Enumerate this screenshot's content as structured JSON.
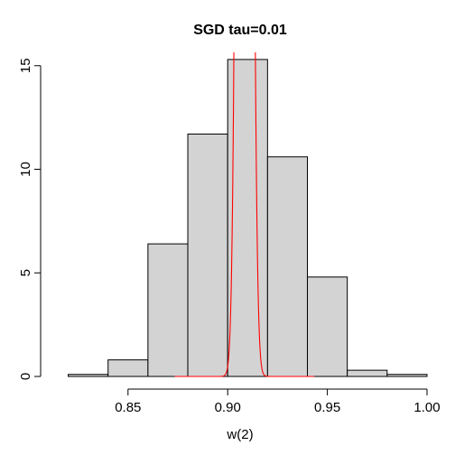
{
  "chart_data": {
    "type": "bar",
    "subtype": "histogram",
    "title": "SGD tau=0.01",
    "xlabel": "w(2)",
    "ylabel": "",
    "xlim": [
      0.8125,
      1.0
    ],
    "ylim": [
      0,
      15.6
    ],
    "x_ticks": [
      0.85,
      0.9,
      0.95,
      1.0
    ],
    "x_tick_labels": [
      "0.85",
      "0.90",
      "0.95",
      "1.00"
    ],
    "y_ticks": [
      0,
      5,
      10,
      15
    ],
    "y_tick_labels": [
      "0",
      "5",
      "10",
      "15"
    ],
    "bins": [
      {
        "x0": 0.82,
        "x1": 0.84,
        "height": 0.1
      },
      {
        "x0": 0.84,
        "x1": 0.86,
        "height": 0.8
      },
      {
        "x0": 0.86,
        "x1": 0.88,
        "height": 6.4
      },
      {
        "x0": 0.88,
        "x1": 0.9,
        "height": 11.7
      },
      {
        "x0": 0.9,
        "x1": 0.92,
        "height": 15.3
      },
      {
        "x0": 0.92,
        "x1": 0.94,
        "height": 10.6
      },
      {
        "x0": 0.94,
        "x1": 0.96,
        "height": 4.8
      },
      {
        "x0": 0.96,
        "x1": 0.98,
        "height": 0.3
      },
      {
        "x0": 0.98,
        "x1": 1.0,
        "height": 0.1
      }
    ],
    "density_curve": {
      "distribution": "normal",
      "mean": 0.9085,
      "sd": 0.0025
    },
    "grid": false,
    "colors": {
      "bar_fill": "#d3d3d3",
      "bar_stroke": "#000000",
      "curve": "#ff0000",
      "axis": "#000000"
    }
  }
}
